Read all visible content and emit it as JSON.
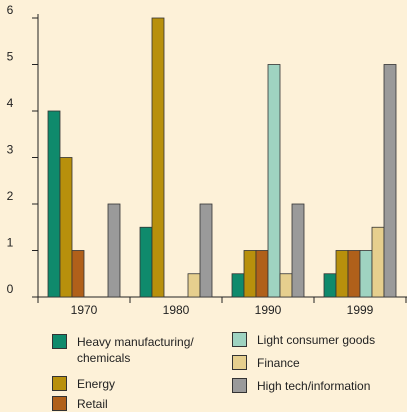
{
  "chart_data": {
    "type": "bar",
    "categories": [
      "1970",
      "1980",
      "1990",
      "1999"
    ],
    "series": [
      {
        "name": "Heavy manufacturing/ chemicals",
        "color": "#0f8a6c",
        "values": [
          4,
          1.5,
          0.5,
          0.5
        ]
      },
      {
        "name": "Energy",
        "color": "#b8900c",
        "values": [
          3,
          6,
          1,
          1
        ]
      },
      {
        "name": "Retail",
        "color": "#b0601a",
        "values": [
          1,
          0,
          1,
          1
        ]
      },
      {
        "name": "Light consumer goods",
        "color": "#9fd3c1",
        "values": [
          0,
          0,
          5,
          1
        ]
      },
      {
        "name": "Finance",
        "color": "#e6cf8e",
        "values": [
          0,
          0.5,
          0.5,
          1.5
        ]
      },
      {
        "name": "High tech/information",
        "color": "#9a9a9a",
        "values": [
          2,
          2,
          2,
          5
        ]
      }
    ],
    "ylim": [
      0,
      6
    ],
    "yticks": [
      0,
      1,
      2,
      3,
      4,
      5,
      6
    ]
  }
}
